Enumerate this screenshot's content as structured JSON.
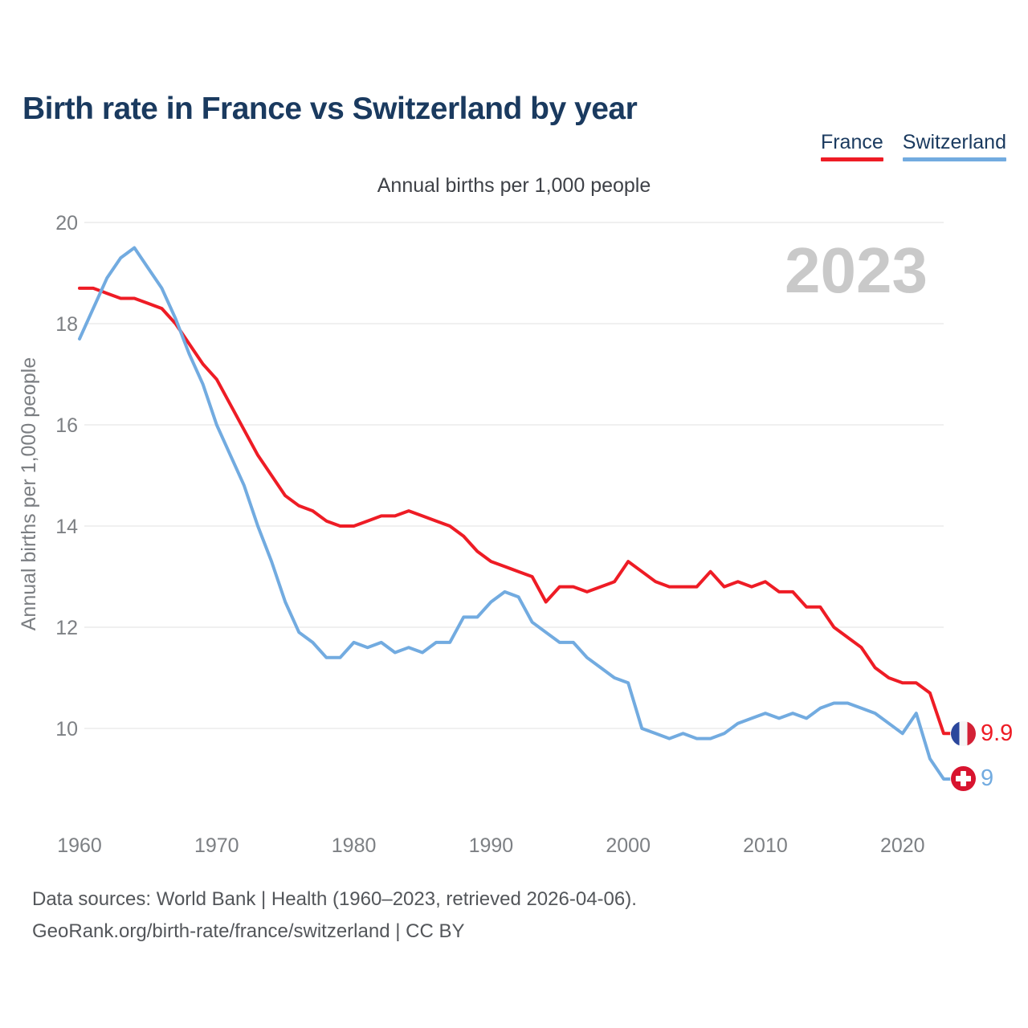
{
  "header": {
    "title": "Birth rate in France vs Switzerland by year",
    "subtitle": "Annual births per 1,000 people"
  },
  "legend": [
    {
      "label": "France",
      "color": "#ee1c25"
    },
    {
      "label": "Switzerland",
      "color": "#72abe0"
    }
  ],
  "watermark_year": "2023",
  "y_axis_title": "Annual births per 1,000 people",
  "chart_data": {
    "type": "line",
    "title": "Birth rate in France vs Switzerland by year",
    "subtitle": "Annual births per 1,000 people",
    "ylabel": "Annual births per 1,000 people",
    "xlabel": "",
    "grid": "horizontal-only",
    "legend_position": "top-right",
    "x_ticks": [
      1960,
      1970,
      1980,
      1990,
      2000,
      2010,
      2020
    ],
    "y_ticks": [
      10,
      12,
      14,
      16,
      18,
      20
    ],
    "ylim": [
      8.8,
      20.3
    ],
    "xlim": [
      1960,
      2023
    ],
    "years": [
      1960,
      1961,
      1962,
      1963,
      1964,
      1965,
      1966,
      1967,
      1968,
      1969,
      1970,
      1971,
      1972,
      1973,
      1974,
      1975,
      1976,
      1977,
      1978,
      1979,
      1980,
      1981,
      1982,
      1983,
      1984,
      1985,
      1986,
      1987,
      1988,
      1989,
      1990,
      1991,
      1992,
      1993,
      1994,
      1995,
      1996,
      1997,
      1998,
      1999,
      2000,
      2001,
      2002,
      2003,
      2004,
      2005,
      2006,
      2007,
      2008,
      2009,
      2010,
      2011,
      2012,
      2013,
      2014,
      2015,
      2016,
      2017,
      2018,
      2019,
      2020,
      2021,
      2022,
      2023
    ],
    "series": [
      {
        "name": "France",
        "color": "#ee1c25",
        "end_label": "9.9",
        "end_value": 9.9,
        "values": [
          18.7,
          18.7,
          18.6,
          18.5,
          18.5,
          18.4,
          18.3,
          18.0,
          17.6,
          17.2,
          16.9,
          16.4,
          15.9,
          15.4,
          15.0,
          14.6,
          14.4,
          14.3,
          14.1,
          14.0,
          14.0,
          14.1,
          14.2,
          14.2,
          14.3,
          14.2,
          14.1,
          14.0,
          13.8,
          13.5,
          13.3,
          13.2,
          13.1,
          13.0,
          12.5,
          12.8,
          12.8,
          12.7,
          12.8,
          12.9,
          13.3,
          13.1,
          12.9,
          12.8,
          12.8,
          12.8,
          13.1,
          12.8,
          12.9,
          12.8,
          12.9,
          12.7,
          12.7,
          12.4,
          12.4,
          12.0,
          11.8,
          11.6,
          11.2,
          11.0,
          10.9,
          10.9,
          10.7,
          9.9
        ]
      },
      {
        "name": "Switzerland",
        "color": "#72abe0",
        "end_label": "9",
        "end_value": 9.0,
        "values": [
          17.7,
          18.3,
          18.9,
          19.3,
          19.5,
          19.1,
          18.7,
          18.1,
          17.4,
          16.8,
          16.0,
          15.4,
          14.8,
          14.0,
          13.3,
          12.5,
          11.9,
          11.7,
          11.4,
          11.4,
          11.7,
          11.6,
          11.7,
          11.5,
          11.6,
          11.5,
          11.7,
          11.7,
          12.2,
          12.2,
          12.5,
          12.7,
          12.6,
          12.1,
          11.9,
          11.7,
          11.7,
          11.4,
          11.2,
          11.0,
          10.9,
          10.0,
          9.9,
          9.8,
          9.9,
          9.8,
          9.8,
          9.9,
          10.1,
          10.2,
          10.3,
          10.2,
          10.3,
          10.2,
          10.4,
          10.5,
          10.5,
          10.4,
          10.3,
          10.1,
          9.9,
          10.3,
          9.4,
          9.0
        ]
      }
    ]
  },
  "end_markers": [
    {
      "country": "France",
      "label": "9.9",
      "flag_colors": [
        "#2b479c",
        "#f6f6f6",
        "#d32136"
      ]
    },
    {
      "country": "Switzerland",
      "label": "9",
      "flag_colors": [
        "#d8142f",
        "#ffffff"
      ]
    }
  ],
  "footer": {
    "line1": "Data sources: World Bank | Health (1960–2023, retrieved 2026-04-06).",
    "line2": "GeoRank.org/birth-rate/france/switzerland | CC BY"
  }
}
